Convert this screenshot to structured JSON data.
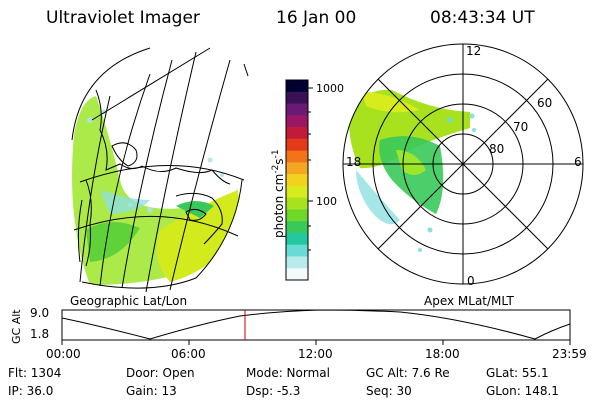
{
  "header": {
    "title": "Ultraviolet Imager",
    "date": "16 Jan 00",
    "time": "08:43:34 UT"
  },
  "geo_panel": {
    "label": "Geographic Lat/Lon"
  },
  "polar_panel": {
    "label": "Apex MLat/MLT",
    "mlt_labels": [
      "12",
      "18",
      "6",
      "0"
    ],
    "mlat_labels": [
      "60",
      "70",
      "80"
    ]
  },
  "colorbar": {
    "ticks": [
      "1000",
      "100"
    ],
    "unit": "photon cm",
    "unit_exp": "-2",
    "unit_s": "s",
    "unit_s_exp": "-1",
    "scale": "log",
    "colors": [
      "#000033",
      "#3a1057",
      "#6a1a74",
      "#9c1666",
      "#c21a3a",
      "#e33a17",
      "#f2731a",
      "#f5a623",
      "#f3d21f",
      "#d7ec1c",
      "#a8e21e",
      "#6fd62a",
      "#39c95a",
      "#23c8a0",
      "#69dbd6",
      "#b8ecec",
      "#f2fafa"
    ]
  },
  "timeline": {
    "axis_label": "GC Alt",
    "y_ticks": [
      "9.0",
      "1.8"
    ],
    "x_ticks": [
      "00:00",
      "06:00",
      "12:00",
      "18:00",
      "23:59"
    ],
    "marker_color": "#cc0000"
  },
  "info": {
    "flt": "Flt: 1304",
    "ip": "IP: 36.0",
    "door": "Door: Open",
    "gain": "Gain: 13",
    "mode": "Mode: Normal",
    "dsp": "Dsp:   -5.3",
    "gcalt": "GC Alt: 7.6 Re",
    "seq": "Seq: 30",
    "glat": "GLat:  55.1",
    "glon": "GLon: 148.1"
  }
}
